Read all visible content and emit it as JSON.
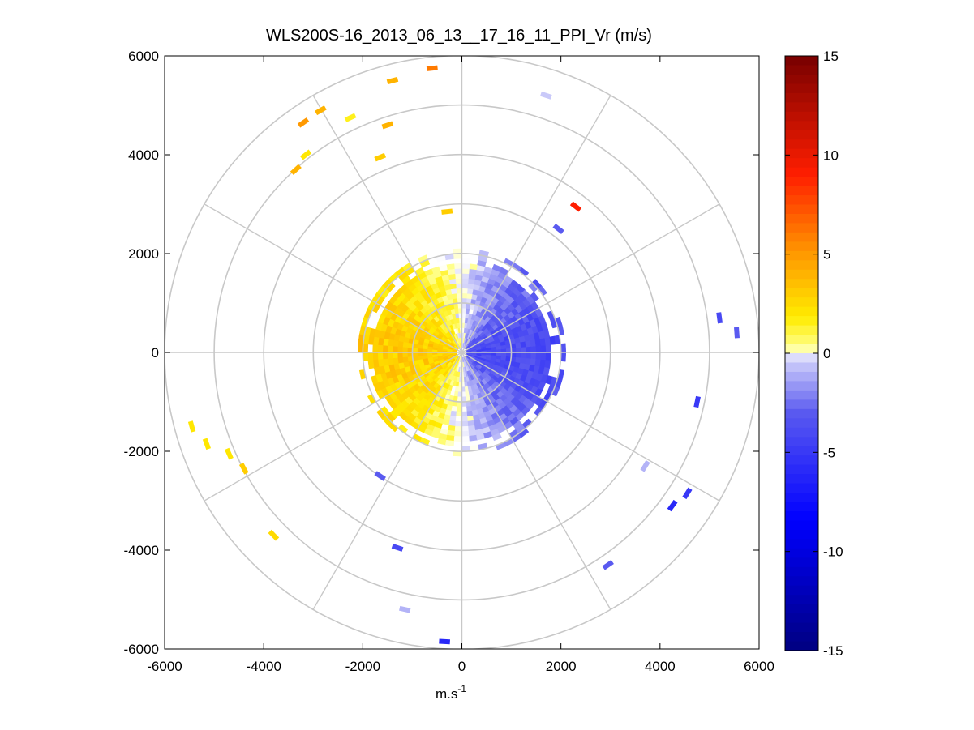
{
  "chart_data": {
    "type": "heatmap",
    "subtype": "polar PPI scan",
    "title": "WLS200S-16_2013_06_13__17_16_11_PPI_Vr (m/s)",
    "xlabel_base": "m.s",
    "xlabel_sup": "-1",
    "ylabel": "",
    "xlim": [
      -6000,
      6000
    ],
    "ylim": [
      -6000,
      6000
    ],
    "x_ticks": [
      "-6000",
      "-4000",
      "-2000",
      "0",
      "2000",
      "4000",
      "6000"
    ],
    "y_ticks": [
      "6000",
      "4000",
      "2000",
      "0",
      "-2000",
      "-4000",
      "-6000"
    ],
    "x_tick_values": [
      -6000,
      -4000,
      -2000,
      0,
      2000,
      4000,
      6000
    ],
    "y_tick_values": [
      6000,
      4000,
      2000,
      0,
      -2000,
      -4000,
      -6000
    ],
    "polar_grid": {
      "rings_m": [
        1000,
        2000,
        3000,
        4000,
        5000,
        6000
      ],
      "spokes_deg": [
        0,
        30,
        60,
        90,
        120,
        150,
        180,
        210,
        240,
        270,
        300,
        330
      ]
    },
    "colorbar": {
      "label": "Vr (m/s)",
      "range": [
        -15,
        15
      ],
      "ticks": [
        "15",
        "10",
        "5",
        "0",
        "-5",
        "-10",
        "-15"
      ],
      "tick_values": [
        15,
        10,
        5,
        0,
        -5,
        -10,
        -15
      ]
    },
    "dense_region": {
      "description": "Radial velocity field: west half positive (approaching, yellow-orange), east half negative (receding, blue)",
      "max_range_m": 2100,
      "west_velocity_ms": 3,
      "east_velocity_ms": -4
    },
    "scattered_gates": [
      {
        "x": -600,
        "y": 5750,
        "vr": 6
      },
      {
        "x": -1400,
        "y": 5500,
        "vr": 4
      },
      {
        "x": -2850,
        "y": 4900,
        "vr": 4
      },
      {
        "x": -3200,
        "y": 4650,
        "vr": 5
      },
      {
        "x": -2250,
        "y": 4750,
        "vr": 1.5
      },
      {
        "x": -1500,
        "y": 4600,
        "vr": 4
      },
      {
        "x": -3150,
        "y": 4000,
        "vr": 2
      },
      {
        "x": -3350,
        "y": 3700,
        "vr": 4
      },
      {
        "x": -1650,
        "y": 3950,
        "vr": 3
      },
      {
        "x": -300,
        "y": 2850,
        "vr": 3
      },
      {
        "x": 1700,
        "y": 5200,
        "vr": -0.5
      },
      {
        "x": 2300,
        "y": 2950,
        "vr": 9
      },
      {
        "x": 1950,
        "y": 2500,
        "vr": -3
      },
      {
        "x": 5200,
        "y": 700,
        "vr": -4
      },
      {
        "x": 5550,
        "y": 400,
        "vr": -3
      },
      {
        "x": 4750,
        "y": -1000,
        "vr": -5
      },
      {
        "x": 3700,
        "y": -2300,
        "vr": -1
      },
      {
        "x": 4550,
        "y": -2850,
        "vr": -5
      },
      {
        "x": 4250,
        "y": -3100,
        "vr": -6
      },
      {
        "x": 2950,
        "y": -4300,
        "vr": -3
      },
      {
        "x": -1150,
        "y": -5200,
        "vr": -1
      },
      {
        "x": -350,
        "y": -5850,
        "vr": -6
      },
      {
        "x": -1300,
        "y": -3950,
        "vr": -4
      },
      {
        "x": -1650,
        "y": -2500,
        "vr": -3
      },
      {
        "x": -5450,
        "y": -1500,
        "vr": 2
      },
      {
        "x": -5150,
        "y": -1850,
        "vr": 2
      },
      {
        "x": -4700,
        "y": -2050,
        "vr": 2
      },
      {
        "x": -4400,
        "y": -2350,
        "vr": 3
      },
      {
        "x": -3800,
        "y": -3700,
        "vr": 2.5
      }
    ]
  }
}
